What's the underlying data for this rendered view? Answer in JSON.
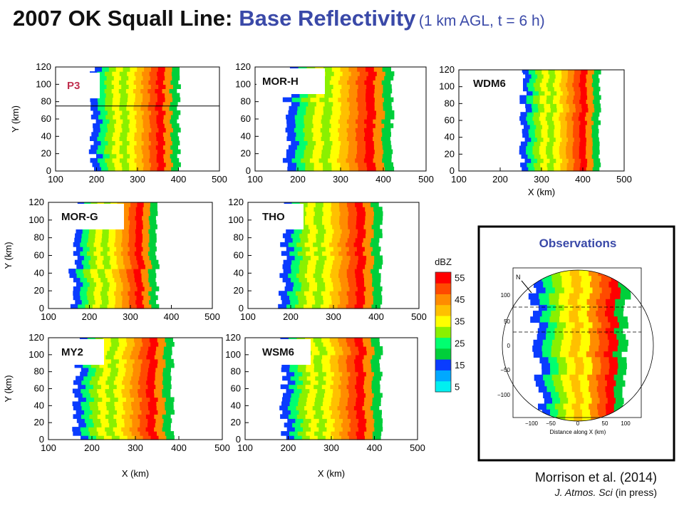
{
  "title": {
    "part1": "2007 OK Squall Line:",
    "part2": "Base Reflectivity",
    "part3": "(1 km AGL, t = 6 h)"
  },
  "colors": {
    "title_dark": "#111111",
    "title_blue": "#3a49a8",
    "label_red": "#c0304f"
  },
  "chart_data": {
    "type": "heatmap",
    "title": "2007 OK Squall Line: Base Reflectivity (1 km AGL, t = 6 h)",
    "panels": [
      {
        "name": "P3",
        "xlim": [
          100,
          500
        ],
        "ylim": [
          0,
          120
        ],
        "x_ticks": [
          "100",
          "200",
          "300",
          "400",
          "500"
        ],
        "y_ticks": [
          "0",
          "20",
          "40",
          "60",
          "80",
          "100",
          "120"
        ],
        "xlabel": "",
        "ylabel": "Y (km)",
        "cross_section_y": 75
      },
      {
        "name": "MOR-H",
        "xlim": [
          100,
          500
        ],
        "ylim": [
          0,
          120
        ],
        "x_ticks": [
          "100",
          "200",
          "300",
          "400",
          "500"
        ],
        "y_ticks": [
          "0",
          "20",
          "40",
          "60",
          "80",
          "100",
          "120"
        ],
        "xlabel": "",
        "ylabel": ""
      },
      {
        "name": "WDM6",
        "xlim": [
          100,
          500
        ],
        "ylim": [
          0,
          120
        ],
        "x_ticks": [
          "100",
          "200",
          "300",
          "400",
          "500"
        ],
        "y_ticks": [
          "0",
          "20",
          "40",
          "60",
          "80",
          "100",
          "120"
        ],
        "xlabel": "X (km)",
        "ylabel": ""
      },
      {
        "name": "MOR-G",
        "xlim": [
          100,
          500
        ],
        "ylim": [
          0,
          120
        ],
        "x_ticks": [
          "100",
          "200",
          "300",
          "400",
          "500"
        ],
        "y_ticks": [
          "0",
          "20",
          "40",
          "60",
          "80",
          "100",
          "120"
        ],
        "xlabel": "",
        "ylabel": "Y (km)"
      },
      {
        "name": "THO",
        "xlim": [
          100,
          500
        ],
        "ylim": [
          0,
          120
        ],
        "x_ticks": [
          "100",
          "200",
          "300",
          "400",
          "500"
        ],
        "y_ticks": [
          "0",
          "20",
          "40",
          "60",
          "80",
          "100",
          "120"
        ],
        "xlabel": "",
        "ylabel": ""
      },
      {
        "name": "MY2",
        "xlim": [
          100,
          500
        ],
        "ylim": [
          0,
          120
        ],
        "x_ticks": [
          "100",
          "200",
          "300",
          "400",
          "500"
        ],
        "y_ticks": [
          "0",
          "20",
          "40",
          "60",
          "80",
          "100",
          "120"
        ],
        "xlabel": "X (km)",
        "ylabel": "Y (km)"
      },
      {
        "name": "WSM6",
        "xlim": [
          100,
          500
        ],
        "ylim": [
          0,
          120
        ],
        "x_ticks": [
          "100",
          "200",
          "300",
          "400",
          "500"
        ],
        "y_ticks": [
          "0",
          "20",
          "40",
          "60",
          "80",
          "100",
          "120"
        ],
        "xlabel": "X (km)",
        "ylabel": ""
      }
    ],
    "colorbar": {
      "label": "dBZ",
      "ticks": [
        "5",
        "15",
        "25",
        "35",
        "45",
        "55"
      ],
      "colors": [
        "#00f0f0",
        "#00a8ff",
        "#0a3cff",
        "#00cf3a",
        "#00ff70",
        "#8af000",
        "#ffff00",
        "#ffc000",
        "#ff8c00",
        "#ff4a00",
        "#ff0000"
      ]
    },
    "observations": {
      "title": "Observations",
      "north_label": "N",
      "x_ticks": [
        "−100",
        "−50",
        "0",
        "50",
        "100"
      ],
      "y_ticks": [
        "100",
        "50",
        "0",
        "−50",
        "−100"
      ],
      "xlabel": "Distance along X (km)"
    }
  },
  "citation": {
    "line1": "Morrison et al. (2014)",
    "journal": "J. Atmos. Sci",
    "status": "(in press)"
  }
}
